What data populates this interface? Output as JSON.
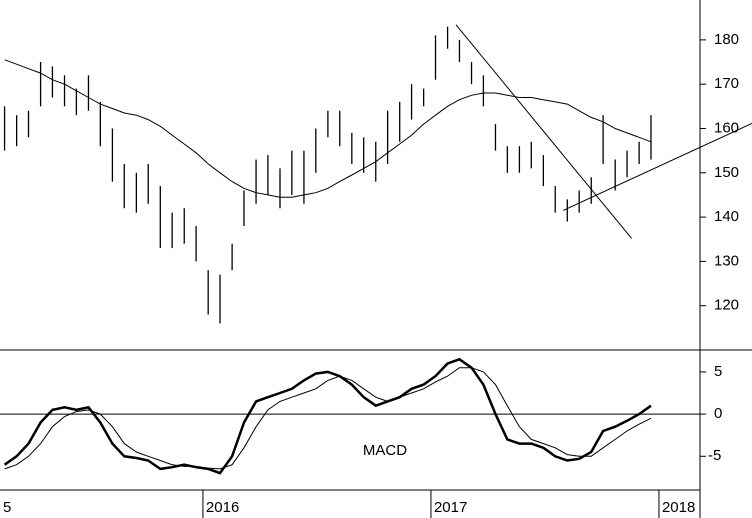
{
  "chart_data": [
    {
      "type": "range",
      "color": "#000000",
      "x": [
        2015.13,
        2015.183,
        2015.235,
        2015.288,
        2015.34,
        2015.393,
        2015.445,
        2015.498,
        2015.55,
        2015.603,
        2015.655,
        2015.708,
        2015.76,
        2015.813,
        2015.865,
        2015.918,
        2015.97,
        2016.023,
        2016.075,
        2016.128,
        2016.18,
        2016.233,
        2016.285,
        2016.338,
        2016.39,
        2016.443,
        2016.495,
        2016.548,
        2016.6,
        2016.653,
        2016.705,
        2016.758,
        2016.81,
        2016.863,
        2016.915,
        2016.968,
        2017.02,
        2017.073,
        2017.125,
        2017.178,
        2017.23,
        2017.283,
        2017.335,
        2017.388,
        2017.44,
        2017.493,
        2017.545,
        2017.598,
        2017.65,
        2017.703,
        2017.755,
        2017.808,
        2017.86,
        2017.913,
        2017.965
      ],
      "high": [
        165,
        163,
        164,
        175,
        174,
        172,
        169,
        172,
        166,
        160,
        152,
        150,
        152,
        147,
        141,
        142,
        138,
        128,
        127,
        134,
        146,
        153,
        154,
        151,
        155,
        155,
        160,
        164,
        164,
        159,
        158,
        157,
        164,
        166,
        170,
        169,
        181,
        183,
        180,
        175,
        172,
        161,
        156,
        156,
        157,
        154,
        147,
        144,
        146,
        149,
        163,
        153,
        155,
        157,
        163
      ],
      "low": [
        155,
        156,
        158,
        165,
        167,
        165,
        163,
        164,
        156,
        148,
        142,
        141,
        143,
        133,
        133,
        134,
        130,
        118,
        116,
        128,
        138,
        143,
        145,
        142,
        145,
        143,
        150,
        158,
        156,
        152,
        150,
        148,
        152,
        157,
        162,
        165,
        171,
        178,
        175,
        170,
        165,
        155,
        150,
        150,
        151,
        147,
        141,
        139,
        141,
        143,
        152,
        146,
        149,
        152,
        153
      ],
      "ma": [
        175.5,
        174.5,
        173.5,
        172.5,
        171,
        170,
        168.5,
        167,
        165.5,
        164.5,
        163.5,
        163,
        162,
        160.5,
        158.5,
        156.5,
        154.5,
        152,
        150,
        148,
        146.5,
        145.5,
        145,
        144.5,
        144.5,
        145,
        145.5,
        146.5,
        148,
        149.5,
        151,
        152.5,
        154.5,
        156.5,
        158.5,
        161,
        163,
        165,
        166.5,
        167.5,
        168,
        168,
        167.5,
        167,
        167,
        166.5,
        166,
        165.5,
        164,
        162.5,
        161.5,
        160,
        159,
        158,
        157
      ],
      "trendlines": [
        {
          "x": [
            2017.11,
            2017.88
          ],
          "y": [
            183.4,
            135.2
          ]
        },
        {
          "x": [
            2017.58,
            2018.41
          ],
          "y": [
            141.5,
            161.2
          ]
        }
      ],
      "xlim": [
        2015.11,
        2018.18
      ],
      "xticks": [
        {
          "value": 2015,
          "label": "5"
        },
        2016,
        2017,
        2018
      ],
      "ylim": [
        110,
        189
      ],
      "yticks": [
        120,
        130,
        140,
        150,
        160,
        170,
        180
      ]
    },
    {
      "type": "line",
      "label": "MACD",
      "color": "#000000",
      "x": [
        2015.13,
        2015.183,
        2015.235,
        2015.288,
        2015.34,
        2015.393,
        2015.445,
        2015.498,
        2015.55,
        2015.603,
        2015.655,
        2015.708,
        2015.76,
        2015.813,
        2015.865,
        2015.918,
        2015.97,
        2016.023,
        2016.075,
        2016.128,
        2016.18,
        2016.233,
        2016.285,
        2016.338,
        2016.39,
        2016.443,
        2016.495,
        2016.548,
        2016.6,
        2016.653,
        2016.705,
        2016.758,
        2016.81,
        2016.863,
        2016.915,
        2016.968,
        2017.02,
        2017.073,
        2017.125,
        2017.178,
        2017.23,
        2017.283,
        2017.335,
        2017.388,
        2017.44,
        2017.493,
        2017.545,
        2017.598,
        2017.65,
        2017.703,
        2017.755,
        2017.808,
        2017.86,
        2017.913,
        2017.965
      ],
      "macd": [
        -6,
        -5,
        -3.5,
        -1,
        0.5,
        0.8,
        0.5,
        0.8,
        -1,
        -3.5,
        -5,
        -5.2,
        -5.5,
        -6.5,
        -6.3,
        -6,
        -6.3,
        -6.5,
        -7,
        -5,
        -1,
        1.5,
        2,
        2.5,
        3,
        4,
        4.8,
        5,
        4.5,
        3.5,
        2,
        1,
        1.5,
        2,
        3,
        3.5,
        4.5,
        6,
        6.5,
        5.5,
        3.5,
        0,
        -3,
        -3.5,
        -3.5,
        -4,
        -5,
        -5.5,
        -5.3,
        -4.5,
        -2,
        -1.5,
        -0.8,
        0,
        1
      ],
      "signal": [
        -6.5,
        -6,
        -5,
        -3.5,
        -1.5,
        -0.3,
        0.3,
        0.5,
        0,
        -1.5,
        -3.5,
        -4.5,
        -5,
        -5.5,
        -6,
        -6.2,
        -6.2,
        -6.4,
        -6.5,
        -6,
        -4,
        -1.5,
        0.5,
        1.5,
        2,
        2.5,
        3,
        4,
        4.5,
        4,
        3,
        2,
        1.5,
        2,
        2.5,
        3,
        3.8,
        4.5,
        5.5,
        5.5,
        5,
        3.5,
        1,
        -1.5,
        -3,
        -3.5,
        -4,
        -4.8,
        -5,
        -5,
        -4,
        -3,
        -2,
        -1.2,
        -0.5
      ],
      "ylim": [
        -9,
        7.6
      ],
      "yticks": [
        -5,
        0,
        5
      ],
      "zero_line": true
    }
  ]
}
